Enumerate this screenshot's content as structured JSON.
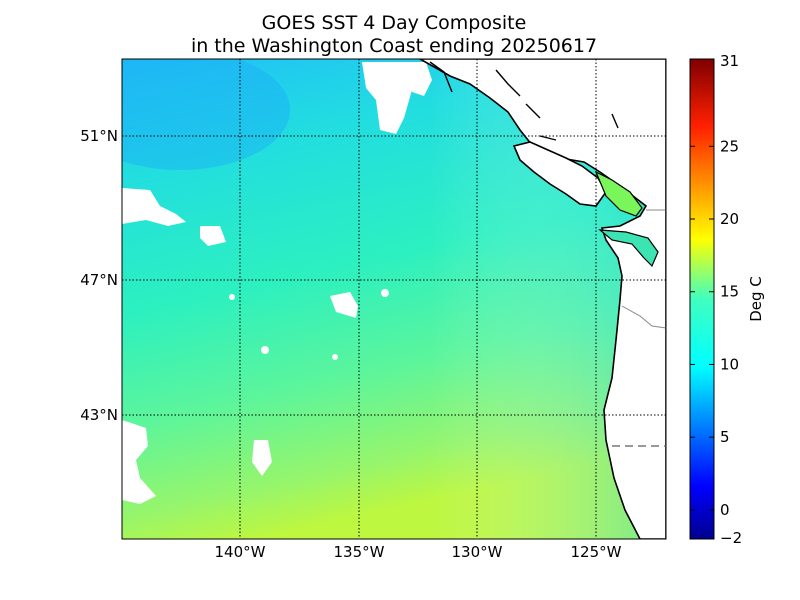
{
  "title_line1": "GOES SST 4 Day Composite",
  "title_line2": "in the Washington Coast ending 20250617",
  "map": {
    "lon_range": [
      -145,
      -122
    ],
    "lat_range": [
      39.5,
      53
    ],
    "lat_ticks": [
      {
        "value": 51,
        "label": "51°N"
      },
      {
        "value": 47,
        "label": "47°N"
      },
      {
        "value": 43,
        "label": "43°N"
      }
    ],
    "lon_ticks": [
      {
        "value": -140,
        "label": "140°W"
      },
      {
        "value": -135,
        "label": "135°W"
      },
      {
        "value": -130,
        "label": "130°W"
      },
      {
        "value": -125,
        "label": "125°W"
      }
    ],
    "grid": "dotted",
    "land_color": "#ffffff",
    "coast_color": "#000000",
    "ocean_colors": {
      "north_cool": "#1ec8f5",
      "mid": "#2af0c8",
      "south_warm": "#b4f548"
    }
  },
  "colorbar": {
    "label": "Deg C",
    "min": -2,
    "max": 31,
    "ticks": [
      {
        "value": 31,
        "label": "31"
      },
      {
        "value": 25,
        "label": "25"
      },
      {
        "value": 20,
        "label": "20"
      },
      {
        "value": 15,
        "label": "15"
      },
      {
        "value": 10,
        "label": "10"
      },
      {
        "value": 5,
        "label": "5"
      },
      {
        "value": 0,
        "label": "0"
      },
      {
        "value": -2,
        "label": "−2"
      }
    ],
    "colormap": "jet"
  }
}
